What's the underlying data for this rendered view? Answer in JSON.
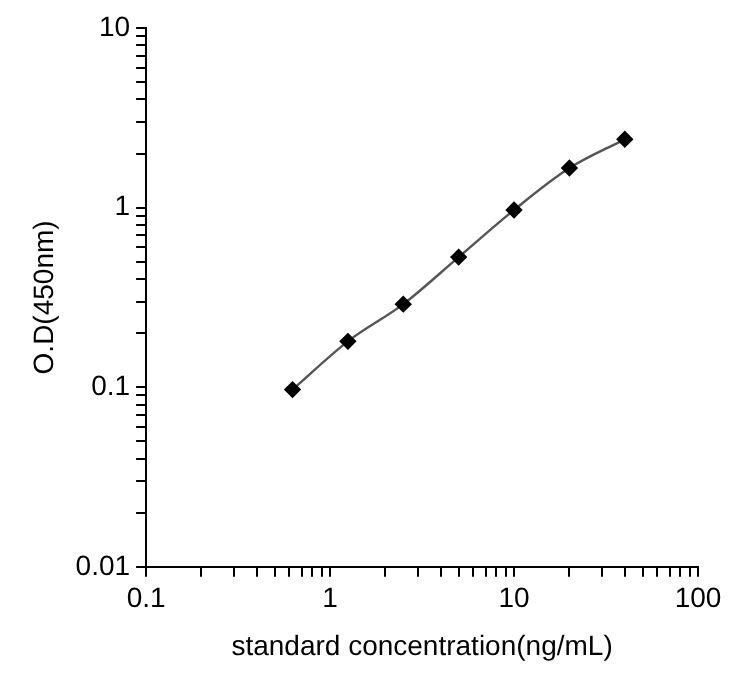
{
  "chart_data": {
    "type": "line",
    "xlabel": "standard concentration(ng/mL)",
    "ylabel": "O.D(450nm)",
    "log": "xy",
    "grid": false,
    "legend": false,
    "marker": "diamond",
    "line_style": "solid",
    "x": [
      0.625,
      1.25,
      2.5,
      5,
      10,
      20,
      40
    ],
    "series": [
      {
        "color": "#000000",
        "values": [
          0.097,
          0.18,
          0.29,
          0.53,
          0.97,
          1.66,
          2.4
        ]
      }
    ],
    "xlim": [
      0.1,
      100
    ],
    "ylim": [
      0.01,
      10
    ],
    "xticks": [
      0.1,
      {
        "value": 0.2,
        "label": null
      },
      {
        "value": 0.3,
        "label": null
      },
      {
        "value": 0.4,
        "label": null
      },
      {
        "value": 0.5,
        "label": null
      },
      {
        "value": 0.6,
        "label": null
      },
      {
        "value": 0.7,
        "label": null
      },
      {
        "value": 0.8,
        "label": null
      },
      {
        "value": 0.9,
        "label": null
      },
      1,
      {
        "value": 2,
        "label": null
      },
      {
        "value": 3,
        "label": null
      },
      {
        "value": 4,
        "label": null
      },
      {
        "value": 5,
        "label": null
      },
      {
        "value": 6,
        "label": null
      },
      {
        "value": 7,
        "label": null
      },
      {
        "value": 8,
        "label": null
      },
      {
        "value": 9,
        "label": null
      },
      10,
      {
        "value": 20,
        "label": null
      },
      {
        "value": 30,
        "label": null
      },
      {
        "value": 40,
        "label": null
      },
      {
        "value": 50,
        "label": null
      },
      {
        "value": 60,
        "label": null
      },
      {
        "value": 70,
        "label": null
      },
      {
        "value": 80,
        "label": null
      },
      {
        "value": 90,
        "label": null
      },
      100
    ],
    "yticks": [
      0.01,
      {
        "value": 0.02,
        "label": null
      },
      {
        "value": 0.03,
        "label": null
      },
      {
        "value": 0.04,
        "label": null
      },
      {
        "value": 0.05,
        "label": null
      },
      {
        "value": 0.06,
        "label": null
      },
      {
        "value": 0.07,
        "label": null
      },
      {
        "value": 0.08,
        "label": null
      },
      {
        "value": 0.09,
        "label": null
      },
      0.1,
      {
        "value": 0.2,
        "label": null
      },
      {
        "value": 0.3,
        "label": null
      },
      {
        "value": 0.4,
        "label": null
      },
      {
        "value": 0.5,
        "label": null
      },
      {
        "value": 0.6,
        "label": null
      },
      {
        "value": 0.7,
        "label": null
      },
      {
        "value": 0.8,
        "label": null
      },
      {
        "value": 0.9,
        "label": null
      },
      1,
      {
        "value": 2,
        "label": null
      },
      {
        "value": 3,
        "label": null
      },
      {
        "value": 4,
        "label": null
      },
      {
        "value": 5,
        "label": null
      },
      {
        "value": 6,
        "label": null
      },
      {
        "value": 7,
        "label": null
      },
      {
        "value": 8,
        "label": null
      },
      {
        "value": 9,
        "label": null
      },
      10
    ]
  }
}
